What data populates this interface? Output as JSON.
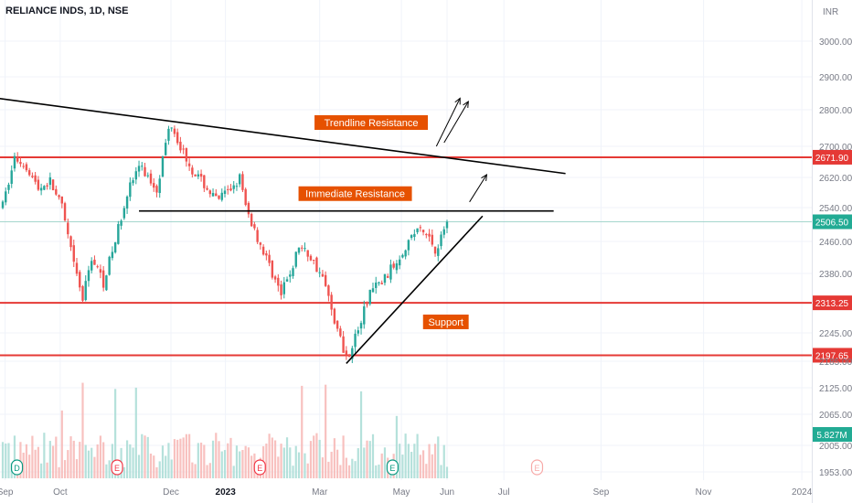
{
  "header": {
    "symbol": "RELIANCE INDS, 1D, NSE",
    "currency": "INR"
  },
  "colors": {
    "up": "#26a69a",
    "down": "#ef5350",
    "resistance": "#e53935",
    "trend": "#000000",
    "annotation_bg": "#e65100",
    "price_tag": "#22ab94",
    "grid": "#f0f3fa",
    "axis_text": "#787b86"
  },
  "chart_data": {
    "type": "candlestick",
    "title": "RELIANCE INDS, 1D, NSE",
    "y_unit": "INR",
    "ylim": [
      1940,
      3040
    ],
    "y_ticks": [
      3000,
      2900,
      2800,
      2700,
      2620,
      2540,
      2460,
      2380,
      2245,
      2185,
      2125,
      2065,
      2005,
      1953
    ],
    "x_ticks": [
      {
        "label": "Sep",
        "t": 0.4
      },
      {
        "label": "Oct",
        "t": 9.7
      },
      {
        "label": "Dec",
        "t": 28.4
      },
      {
        "label": "2023",
        "t": 37.6
      },
      {
        "label": "Mar",
        "t": 53.5
      },
      {
        "label": "May",
        "t": 67.3
      },
      {
        "label": "Jun",
        "t": 75.0
      },
      {
        "label": "Jul",
        "t": 84.6
      },
      {
        "label": "Sep",
        "t": 101.0
      },
      {
        "label": "Nov",
        "t": 118.3
      },
      {
        "label": "2024",
        "t": 134.9
      }
    ],
    "last_bar_t": 75.0,
    "price_path": [
      [
        0,
        2545
      ],
      [
        2,
        2670
      ],
      [
        4,
        2650
      ],
      [
        6,
        2590
      ],
      [
        8,
        2610
      ],
      [
        10,
        2540
      ],
      [
        12,
        2400
      ],
      [
        13.5,
        2320
      ],
      [
        15,
        2420
      ],
      [
        17,
        2360
      ],
      [
        19,
        2460
      ],
      [
        21,
        2580
      ],
      [
        23,
        2650
      ],
      [
        26,
        2590
      ],
      [
        28.3,
        2770
      ],
      [
        30,
        2700
      ],
      [
        32,
        2640
      ],
      [
        34,
        2600
      ],
      [
        36,
        2560
      ],
      [
        38,
        2580
      ],
      [
        40,
        2620
      ],
      [
        41,
        2540
      ],
      [
        43,
        2470
      ],
      [
        45,
        2400
      ],
      [
        47,
        2330
      ],
      [
        49,
        2400
      ],
      [
        50,
        2450
      ],
      [
        52,
        2420
      ],
      [
        54,
        2370
      ],
      [
        55.5,
        2300
      ],
      [
        57,
        2230
      ],
      [
        58,
        2195
      ],
      [
        59,
        2220
      ],
      [
        60.5,
        2270
      ],
      [
        62,
        2340
      ],
      [
        64,
        2360
      ],
      [
        66,
        2400
      ],
      [
        68,
        2450
      ],
      [
        70,
        2490
      ],
      [
        72,
        2470
      ],
      [
        73,
        2440
      ],
      [
        74,
        2470
      ],
      [
        75,
        2506
      ]
    ],
    "levels": [
      {
        "price": 2671.9,
        "label": "2671.90"
      },
      {
        "price": 2313.25,
        "label": "2313.25"
      },
      {
        "price": 2197.65,
        "label": "2197.65"
      }
    ],
    "last_price": {
      "price": 2506.5,
      "label": "2506.50"
    },
    "volume_label": "5.827M",
    "trendlines": [
      {
        "from": {
          "t": -1,
          "p": 2835
        },
        "to": {
          "t": 95,
          "p": 2630
        }
      },
      {
        "from": {
          "t": 23,
          "p": 2532
        },
        "to": {
          "t": 93,
          "p": 2532
        }
      },
      {
        "from": {
          "t": 58,
          "p": 2180
        },
        "to": {
          "t": 81,
          "p": 2520
        }
      }
    ],
    "annotations": [
      {
        "text": "Trendline Resistance",
        "t": 62.2,
        "p": 2765
      },
      {
        "text": "Immediate Resistance",
        "t": 59.5,
        "p": 2577
      },
      {
        "text": "Support",
        "t": 74.8,
        "p": 2270
      }
    ],
    "arrows": [
      {
        "from": {
          "t": 73.2,
          "p": 2700
        },
        "to": {
          "t": 77.2,
          "p": 2835
        }
      },
      {
        "from": {
          "t": 74.5,
          "p": 2710
        },
        "to": {
          "t": 78.6,
          "p": 2825
        }
      },
      {
        "from": {
          "t": 78.8,
          "p": 2555
        },
        "to": {
          "t": 81.7,
          "p": 2627
        }
      }
    ],
    "event_markers": [
      {
        "letter": "D",
        "t": 2.4,
        "type": "dividend"
      },
      {
        "letter": "E",
        "t": 19.3,
        "type": "earnings"
      },
      {
        "letter": "E",
        "t": 43.4,
        "type": "earnings"
      },
      {
        "letter": "E",
        "t": 65.8,
        "type": "earnings"
      },
      {
        "letter": "E",
        "t": 90.2,
        "type": "future"
      }
    ]
  }
}
